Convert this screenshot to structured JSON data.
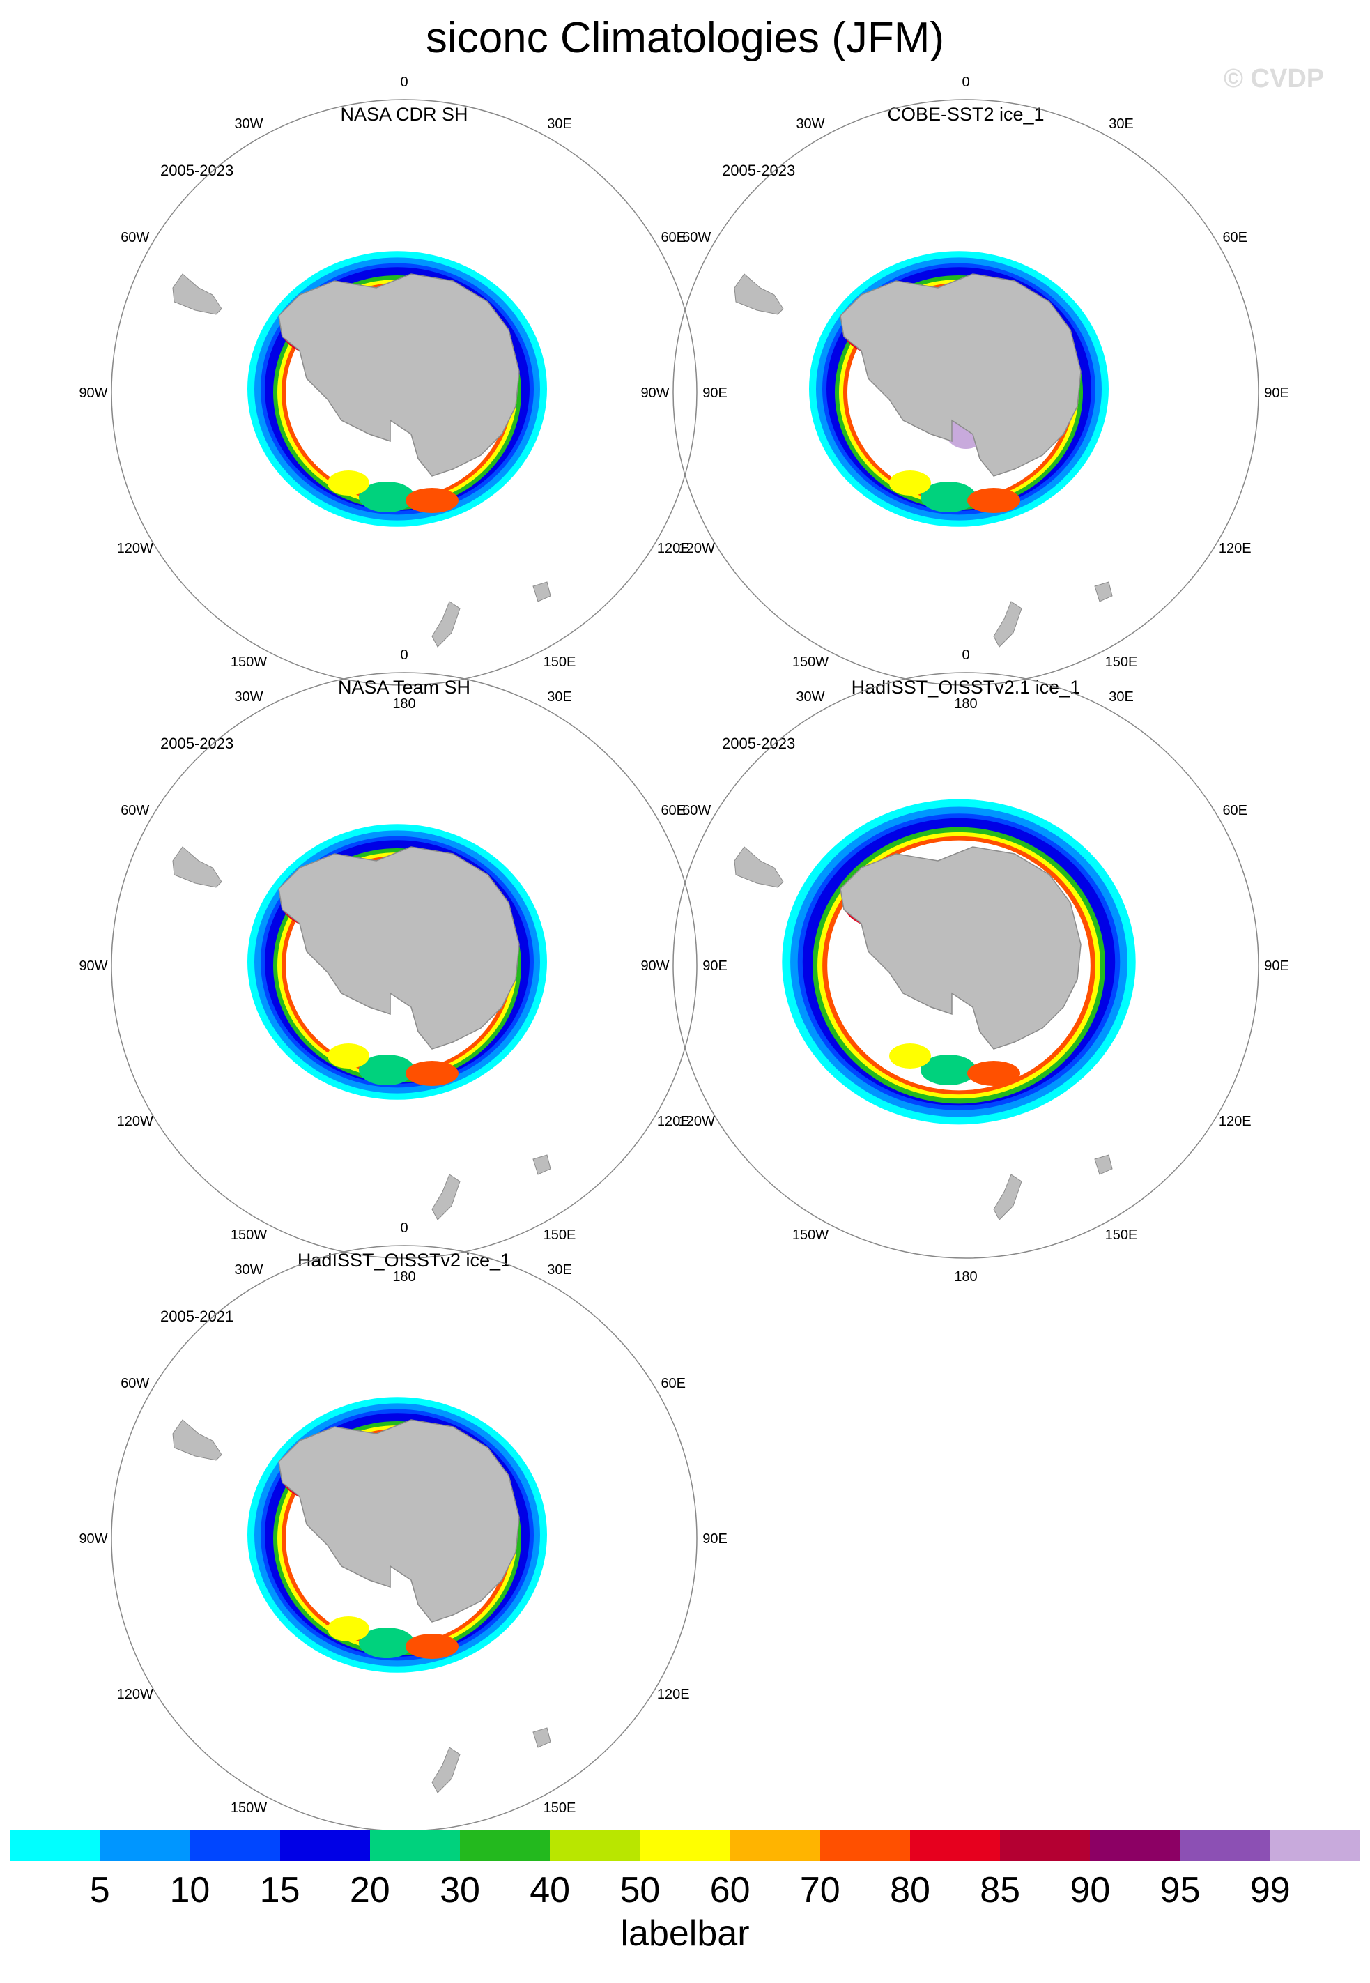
{
  "title": "siconc Climatologies (JFM)",
  "watermark": "© CVDP",
  "colors": {
    "land": "#bdbdbd",
    "coast": "#8c8c8c",
    "circle": "#888888",
    "shelf_white": "#ffffff"
  },
  "panels": [
    {
      "title": "NASA CDR SH",
      "period": "2005-2023"
    },
    {
      "title": "COBE-SST2 ice_1",
      "period": "2005-2023"
    },
    {
      "title": "NASA Team SH",
      "period": "2005-2023"
    },
    {
      "title": "HadISST_OISSTv2.1 ice_1",
      "period": "2005-2023"
    },
    {
      "title": "HadISST_OISSTv2 ice_1",
      "period": "2005-2021"
    }
  ],
  "longitude_labels": [
    "0",
    "30E",
    "60E",
    "90E",
    "120E",
    "150E",
    "180",
    "150W",
    "120W",
    "90W",
    "60W",
    "30W"
  ],
  "labelbar": {
    "title": "labelbar",
    "ticks": [
      "5",
      "10",
      "15",
      "20",
      "30",
      "40",
      "50",
      "60",
      "70",
      "80",
      "85",
      "90",
      "95",
      "99"
    ],
    "colors": [
      "#00ffff",
      "#0096ff",
      "#0046ff",
      "#0000e6",
      "#00d27d",
      "#23b91e",
      "#b9e600",
      "#ffff00",
      "#ffb400",
      "#ff5000",
      "#e6001e",
      "#b40032",
      "#8c0064",
      "#8c50b4",
      "#c8aadc"
    ]
  }
}
